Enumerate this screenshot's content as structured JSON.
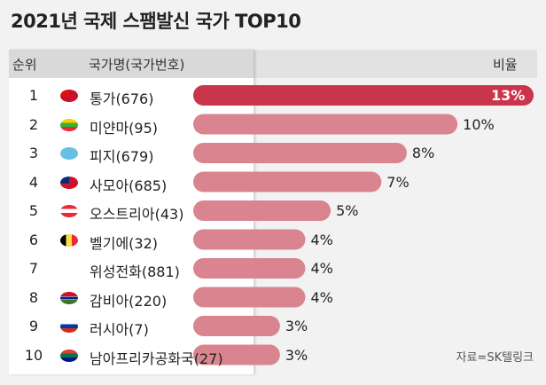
{
  "title": "2021년 국제 스팸발신 국가 TOP10",
  "header": {
    "rank": "순위",
    "country": "국가명(국가번호)",
    "ratio": "비율"
  },
  "source": "자료=SK텔링크",
  "chart_data": {
    "type": "bar",
    "orientation": "horizontal",
    "categories": [
      "통가(676)",
      "미얀마(95)",
      "피지(679)",
      "사모아(685)",
      "오스트리아(43)",
      "벨기에(32)",
      "위성전화(881)",
      "감비아(220)",
      "러시아(7)",
      "남아프리카공화국(27)"
    ],
    "ranks": [
      "1",
      "2",
      "3",
      "4",
      "5",
      "6",
      "7",
      "8",
      "9",
      "10"
    ],
    "values": [
      13,
      10,
      8,
      7,
      5,
      4,
      4,
      4,
      3,
      3
    ],
    "labels": [
      "13%",
      "10%",
      "8%",
      "7%",
      "5%",
      "4%",
      "4%",
      "4%",
      "3%",
      "3%"
    ],
    "colors": {
      "highlight": "#c9354b",
      "bar": "#d9848f"
    }
  }
}
